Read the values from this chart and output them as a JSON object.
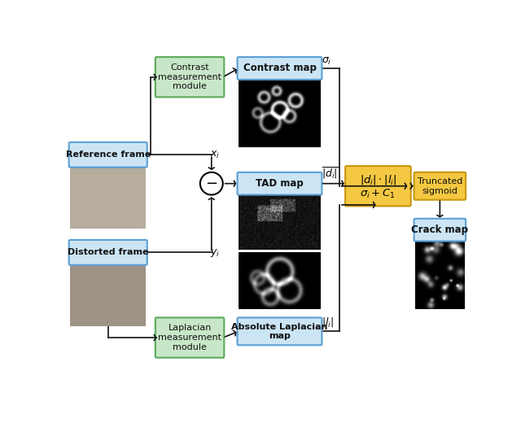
{
  "bg_color": "#ffffff",
  "blue_fc": "#cce5f5",
  "blue_ec": "#5a9fd4",
  "green_fc": "#c8e6c8",
  "green_ec": "#5aaa5a",
  "orange_fc": "#f5c842",
  "orange_ec": "#c8960a",
  "arrow_color": "#111111",
  "text_color": "#111111",
  "labels": {
    "reference_frame": "Reference frame",
    "distorted_frame": "Distorted frame",
    "contrast_module": "Contrast\nmeasurement\nmodule",
    "contrast_map": "Contrast map",
    "tad_map": "TAD map",
    "abs_lap_map": "Absolute Laplacian\nmap",
    "lap_module": "Laplacian\nmeasurement\nmodule",
    "trunc_sigmoid": "Truncated\nsigmoid",
    "crack_map": "Crack map"
  }
}
